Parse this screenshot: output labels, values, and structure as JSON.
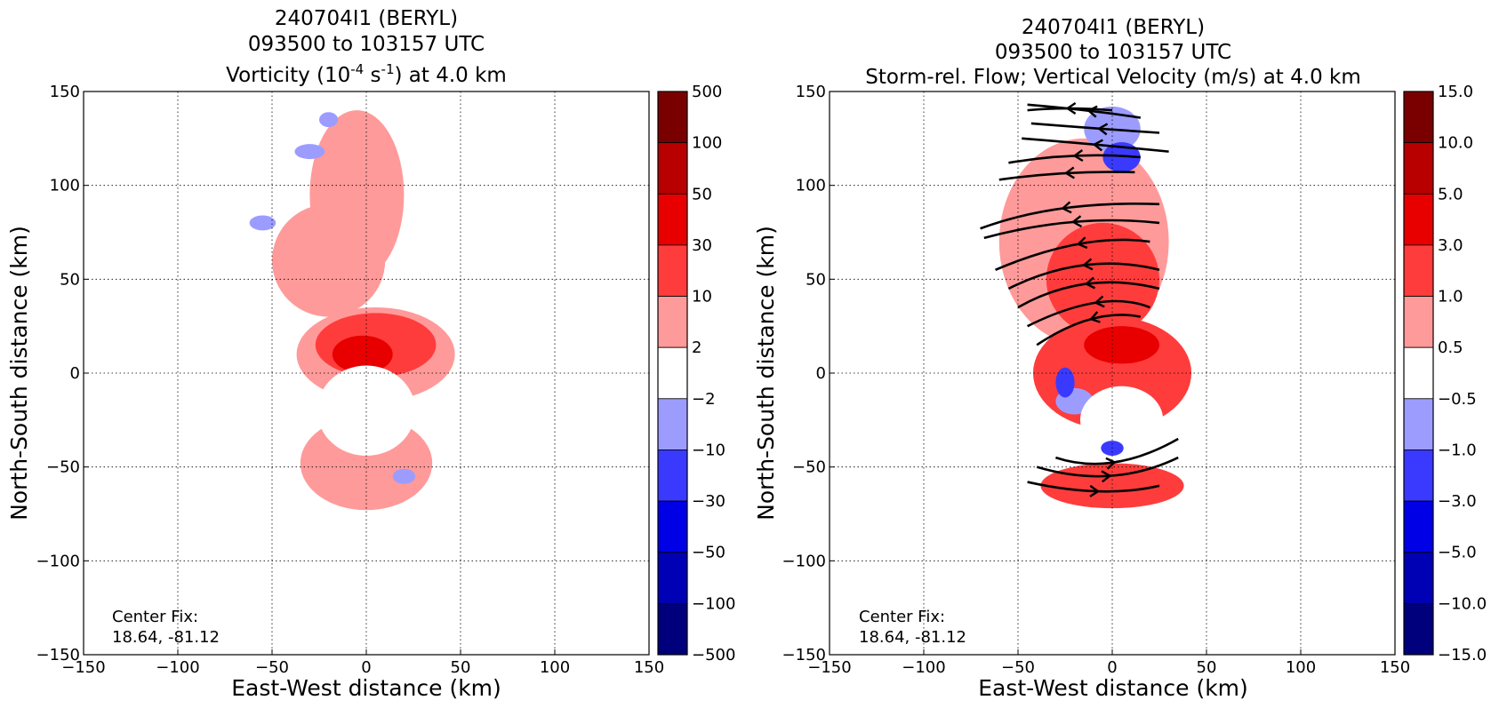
{
  "chart_data": [
    {
      "type": "heatmap",
      "title_lines": [
        "240704I1 (BERYL)",
        "093500 to 103157 UTC"
      ],
      "title_var_prefix": "Vorticity (10",
      "title_var_sup1": "-4",
      "title_var_mid": " s",
      "title_var_sup2": "-1",
      "title_var_suffix": ") at 4.0 km",
      "xlabel": "East-West distance (km)",
      "ylabel": "North-South distance (km)",
      "xlim": [
        -150,
        150
      ],
      "ylim": [
        -150,
        150
      ],
      "xticks": [
        -150,
        -100,
        -50,
        0,
        50,
        100,
        150
      ],
      "yticks": [
        -150,
        -100,
        -50,
        0,
        50,
        100,
        150
      ],
      "xtick_labels": [
        "−150",
        "−100",
        "−50",
        "0",
        "50",
        "100",
        "150"
      ],
      "ytick_labels": [
        "−150",
        "−100",
        "−50",
        "0",
        "50",
        "100",
        "150"
      ],
      "grid": true,
      "annotation_line1": "Center Fix:",
      "annotation_line2": "18.64, -81.12",
      "colorbar_labels": [
        "500",
        "100",
        "50",
        "30",
        "10",
        "2",
        "−2",
        "−10",
        "−30",
        "−50",
        "−100",
        "−500"
      ],
      "colorbar_colors": [
        "#7a0000",
        "#b80000",
        "#e80000",
        "#ff3c3c",
        "#ff9a9a",
        "#ffffff",
        "#9c9cff",
        "#3a3aff",
        "#0000e6",
        "#0000b4",
        "#00007c"
      ],
      "fields": [
        {
          "color": "#ff9a9a",
          "shape": "ellipse",
          "cx": -5,
          "cy": 95,
          "rx": 25,
          "ry": 45
        },
        {
          "color": "#ff9a9a",
          "shape": "ellipse",
          "cx": -20,
          "cy": 60,
          "rx": 30,
          "ry": 30
        },
        {
          "color": "#ff9a9a",
          "shape": "ellipse",
          "cx": 5,
          "cy": 10,
          "rx": 42,
          "ry": 25
        },
        {
          "color": "#ff9a9a",
          "shape": "ellipse",
          "cx": 0,
          "cy": -48,
          "rx": 35,
          "ry": 25
        },
        {
          "color": "#ff3c3c",
          "shape": "ellipse",
          "cx": 5,
          "cy": 15,
          "rx": 32,
          "ry": 17
        },
        {
          "color": "#e80000",
          "shape": "ellipse",
          "cx": -2,
          "cy": 10,
          "rx": 16,
          "ry": 10
        },
        {
          "color": "#ffffff",
          "shape": "ellipse",
          "cx": 0,
          "cy": -20,
          "rx": 26,
          "ry": 24
        },
        {
          "color": "#9c9cff",
          "shape": "ellipse",
          "cx": -30,
          "cy": 118,
          "rx": 8,
          "ry": 4
        },
        {
          "color": "#9c9cff",
          "shape": "ellipse",
          "cx": -55,
          "cy": 80,
          "rx": 7,
          "ry": 4
        },
        {
          "color": "#9c9cff",
          "shape": "ellipse",
          "cx": -20,
          "cy": 135,
          "rx": 5,
          "ry": 4
        },
        {
          "color": "#9c9cff",
          "shape": "ellipse",
          "cx": 20,
          "cy": -55,
          "rx": 6,
          "ry": 4
        }
      ]
    },
    {
      "type": "heatmap",
      "title_lines": [
        "240704I1 (BERYL)",
        "093500 to 103157 UTC",
        "Storm-rel. Flow; Vertical Velocity (m/s) at 4.0 km"
      ],
      "xlabel": "East-West distance (km)",
      "ylabel": "North-South distance (km)",
      "xlim": [
        -150,
        150
      ],
      "ylim": [
        -150,
        150
      ],
      "xticks": [
        -150,
        -100,
        -50,
        0,
        50,
        100,
        150
      ],
      "yticks": [
        -150,
        -100,
        -50,
        0,
        50,
        100,
        150
      ],
      "xtick_labels": [
        "−150",
        "−100",
        "−50",
        "0",
        "50",
        "100",
        "150"
      ],
      "ytick_labels": [
        "−150",
        "−100",
        "−50",
        "0",
        "50",
        "100",
        "150"
      ],
      "grid": true,
      "annotation_line1": "Center Fix:",
      "annotation_line2": "18.64, -81.12",
      "colorbar_labels": [
        "15.0",
        "10.0",
        "5.0",
        "3.0",
        "1.0",
        "0.5",
        "−0.5",
        "−1.0",
        "−3.0",
        "−5.0",
        "−10.0",
        "−15.0"
      ],
      "colorbar_colors": [
        "#7a0000",
        "#b80000",
        "#e80000",
        "#ff3c3c",
        "#ff9a9a",
        "#ffffff",
        "#9c9cff",
        "#3a3aff",
        "#0000e6",
        "#0000b4",
        "#00007c"
      ],
      "fields": [
        {
          "color": "#ff9a9a",
          "shape": "ellipse",
          "cx": -15,
          "cy": 70,
          "rx": 45,
          "ry": 55
        },
        {
          "color": "#ff3c3c",
          "shape": "ellipse",
          "cx": -5,
          "cy": 50,
          "rx": 30,
          "ry": 30
        },
        {
          "color": "#ff3c3c",
          "shape": "ellipse",
          "cx": 0,
          "cy": 0,
          "rx": 42,
          "ry": 30
        },
        {
          "color": "#e80000",
          "shape": "ellipse",
          "cx": 5,
          "cy": 15,
          "rx": 20,
          "ry": 10
        },
        {
          "color": "#ff3c3c",
          "shape": "ellipse",
          "cx": 0,
          "cy": -60,
          "rx": 38,
          "ry": 12
        },
        {
          "color": "#9c9cff",
          "shape": "ellipse",
          "cx": 0,
          "cy": 130,
          "rx": 15,
          "ry": 12
        },
        {
          "color": "#3a3aff",
          "shape": "ellipse",
          "cx": 5,
          "cy": 115,
          "rx": 10,
          "ry": 8
        },
        {
          "color": "#9c9cff",
          "shape": "ellipse",
          "cx": -20,
          "cy": -15,
          "rx": 10,
          "ry": 7
        },
        {
          "color": "#ffffff",
          "shape": "ellipse",
          "cx": 5,
          "cy": -25,
          "rx": 22,
          "ry": 18
        },
        {
          "color": "#3a3aff",
          "shape": "ellipse",
          "cx": -25,
          "cy": -5,
          "rx": 5,
          "ry": 8
        },
        {
          "color": "#3a3aff",
          "shape": "ellipse",
          "cx": 0,
          "cy": -40,
          "rx": 6,
          "ry": 4
        }
      ],
      "streamlines": [
        {
          "points": [
            [
              -45,
              143
            ],
            [
              -10,
              140
            ],
            [
              15,
              136
            ]
          ],
          "arrow_at": 1,
          "arrow_dir": "left"
        },
        {
          "points": [
            [
              -43,
              133
            ],
            [
              -5,
              130
            ],
            [
              25,
              128
            ]
          ],
          "arrow_at": 1,
          "arrow_dir": "left"
        },
        {
          "points": [
            [
              -48,
              125
            ],
            [
              -10,
              122
            ],
            [
              30,
              118
            ]
          ],
          "arrow_at": 1,
          "arrow_dir": "left"
        },
        {
          "points": [
            [
              -55,
              112
            ],
            [
              -20,
              118
            ],
            [
              15,
              115
            ]
          ],
          "arrow_at": 1,
          "arrow_dir": "left"
        },
        {
          "points": [
            [
              -60,
              103
            ],
            [
              -25,
              108
            ],
            [
              12,
              107
            ]
          ],
          "arrow_at": 1,
          "arrow_dir": "left"
        },
        {
          "points": [
            [
              -70,
              77
            ],
            [
              -30,
              92
            ],
            [
              25,
              90
            ]
          ],
          "arrow_at": 1,
          "arrow_dir": "left"
        },
        {
          "points": [
            [
              -68,
              72
            ],
            [
              -20,
              85
            ],
            [
              25,
              80
            ]
          ],
          "arrow_at": 1,
          "arrow_dir": "left"
        },
        {
          "points": [
            [
              -62,
              55
            ],
            [
              -15,
              75
            ],
            [
              20,
              70
            ]
          ],
          "arrow_at": 1,
          "arrow_dir": "left"
        },
        {
          "points": [
            [
              -55,
              45
            ],
            [
              -15,
              65
            ],
            [
              25,
              55
            ]
          ],
          "arrow_at": 1,
          "arrow_dir": "left"
        },
        {
          "points": [
            [
              -50,
              35
            ],
            [
              -15,
              55
            ],
            [
              25,
              45
            ]
          ],
          "arrow_at": 1,
          "arrow_dir": "left"
        },
        {
          "points": [
            [
              -45,
              25
            ],
            [
              -5,
              45
            ],
            [
              20,
              35
            ]
          ],
          "arrow_at": 1,
          "arrow_dir": "left"
        },
        {
          "points": [
            [
              -40,
              15
            ],
            [
              -10,
              35
            ],
            [
              15,
              30
            ]
          ],
          "arrow_at": 1,
          "arrow_dir": "left"
        },
        {
          "points": [
            [
              -45,
              140
            ],
            [
              -25,
              142
            ],
            [
              0,
              140
            ]
          ],
          "arrow_at": 1,
          "arrow_dir": "left"
        },
        {
          "points": [
            [
              -30,
              -45
            ],
            [
              0,
              -55
            ],
            [
              35,
              -35
            ]
          ],
          "arrow_at": 1,
          "arrow_dir": "right"
        },
        {
          "points": [
            [
              -40,
              -50
            ],
            [
              0,
              -62
            ],
            [
              35,
              -45
            ]
          ],
          "arrow_at": 1,
          "arrow_dir": "right"
        },
        {
          "points": [
            [
              -45,
              -58
            ],
            [
              -5,
              -67
            ],
            [
              25,
              -60
            ]
          ],
          "arrow_at": 1,
          "arrow_dir": "right"
        }
      ]
    }
  ]
}
